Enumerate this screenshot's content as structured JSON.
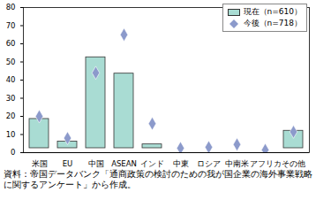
{
  "chart_data": {
    "type": "bar",
    "categories": [
      "米国",
      "EU",
      "中国",
      "ASEAN",
      "インド",
      "中東",
      "ロシア",
      "中南米",
      "アフリカ",
      "その他"
    ],
    "series": [
      {
        "name": "現在（n=610）",
        "type": "bar",
        "color": "#a9dcd3",
        "values": [
          21,
          8.5,
          55,
          46,
          7,
          1.5,
          1.5,
          2.5,
          0.5,
          14.5
        ]
      },
      {
        "name": "今後（n=718）",
        "type": "scatter",
        "marker": "diamond",
        "color": "#8c9acb",
        "values": [
          20,
          8,
          44,
          65,
          16,
          2.5,
          3,
          4.5,
          1.5,
          11.5
        ]
      }
    ],
    "ylim": [
      0,
      80
    ],
    "yticks": [
      0,
      10,
      20,
      30,
      40,
      50,
      60,
      70,
      80
    ],
    "grid": false,
    "legend": "top-right",
    "caption": "資料：帝国データバンク「通商政策の検討のための我が国企業の海外事業戦略に関するアンケート」から作成。"
  }
}
